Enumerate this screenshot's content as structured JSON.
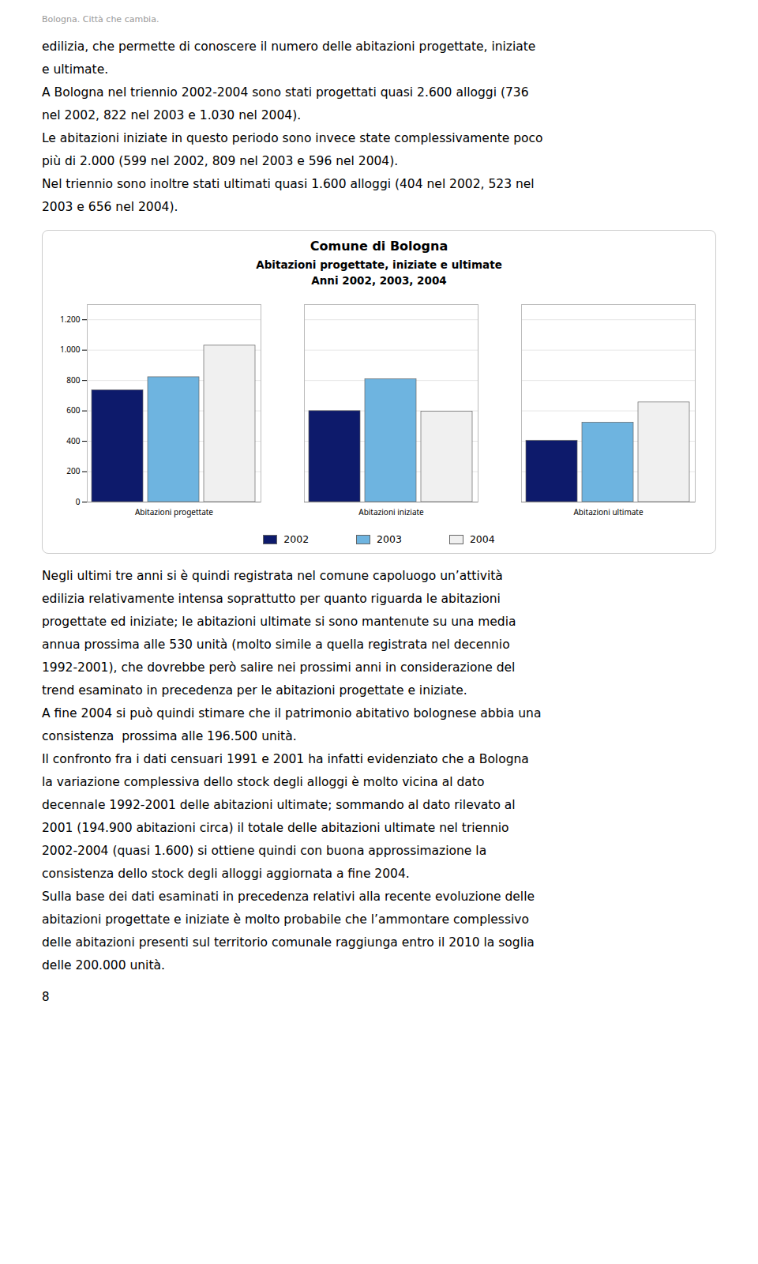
{
  "header": "Bologna. Città che cambia.",
  "body_text_top": [
    "edilizia, che permette di conoscere il numero delle abitazioni progettate, iniziate",
    "e ultimate.",
    "A Bologna nel triennio 2002-2004 sono stati progettati quasi 2.600 alloggi (736",
    "nel 2002, 822 nel 2003 e 1.030 nel 2004).",
    "Le abitazioni iniziate in questo periodo sono invece state complessivamente poco",
    "più di 2.000 (599 nel 2002, 809 nel 2003 e 596 nel 2004).",
    "Nel triennio sono inoltre stati ultimati quasi 1.600 alloggi (404 nel 2002, 523 nel",
    "2003 e 656 nel 2004)."
  ],
  "chart_data": {
    "type": "bar",
    "title": "Comune di Bologna",
    "subtitle": [
      "Abitazioni progettate, iniziate e ultimate",
      "Anni 2002, 2003, 2004"
    ],
    "categories": [
      "Abitazioni progettate",
      "Abitazioni iniziate",
      "Abitazioni ultimate"
    ],
    "series": [
      {
        "name": "2002",
        "color": "#0d1a6b",
        "values": [
          736,
          599,
          404
        ]
      },
      {
        "name": "2003",
        "color": "#6eb4e0",
        "values": [
          822,
          809,
          523
        ]
      },
      {
        "name": "2004",
        "color": "#f0f0f0",
        "values": [
          1030,
          596,
          656
        ]
      }
    ],
    "ylim": [
      0,
      1300
    ],
    "yticks": [
      0,
      200,
      400,
      600,
      800,
      {
        "value": 1000,
        "label": "1.000"
      },
      {
        "value": 1200,
        "label": "1.200"
      }
    ],
    "grid": true,
    "legend": "bottom"
  },
  "body_text_bottom": [
    "Negli ultimi tre anni si è quindi registrata nel comune capoluogo un’attività",
    "edilizia relativamente intensa soprattutto per quanto riguarda le abitazioni",
    "progettate ed iniziate; le abitazioni ultimate si sono mantenute su una media",
    "annua prossima alle 530 unità (molto simile a quella registrata nel decennio",
    "1992-2001), che dovrebbe però salire nei prossimi anni in considerazione del",
    "trend esaminato in precedenza per le abitazioni progettate e iniziate.",
    "A fine 2004 si può quindi stimare che il patrimonio abitativo bolognese abbia una",
    "consistenza  prossima alle 196.500 unità.",
    "Il confronto fra i dati censuari 1991 e 2001 ha infatti evidenziato che a Bologna",
    "la variazione complessiva dello stock degli alloggi è molto vicina al dato",
    "decennale 1992-2001 delle abitazioni ultimate; sommando al dato rilevato al",
    "2001 (194.900 abitazioni circa) il totale delle abitazioni ultimate nel triennio",
    "2002-2004 (quasi 1.600) si ottiene quindi con buona approssimazione la",
    "consistenza dello stock degli alloggi aggiornata a fine 2004.",
    "Sulla base dei dati esaminati in precedenza relativi alla recente evoluzione delle",
    "abitazioni progettate e iniziate è molto probabile che l’ammontare complessivo",
    "delle abitazioni presenti sul territorio comunale raggiunga entro il 2010 la soglia",
    "delle 200.000 unità."
  ],
  "page_number": "8"
}
